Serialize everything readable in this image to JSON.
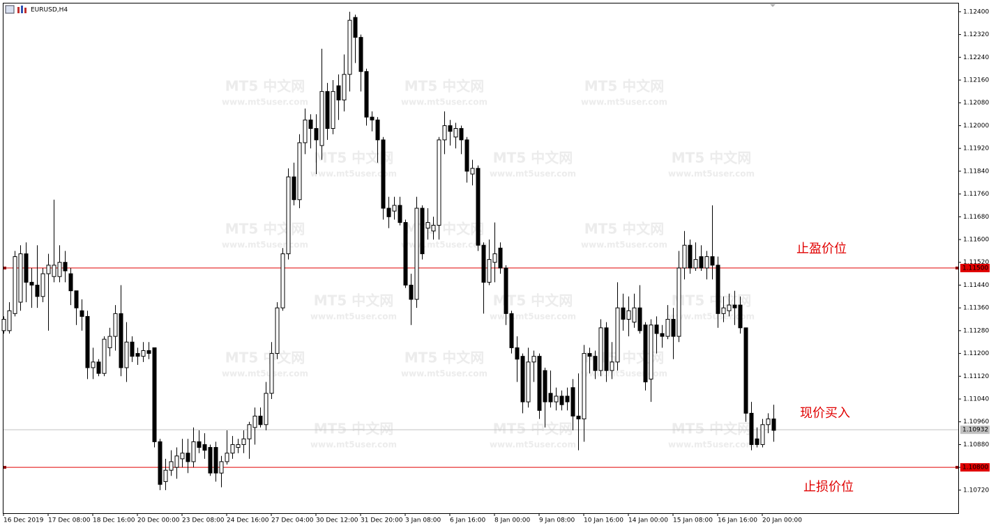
{
  "chart_data": {
    "type": "candlestick",
    "title": "EURUSD,H4",
    "categories": [
      "16 Dec 2019",
      null,
      null,
      null,
      null,
      null,
      null,
      null,
      "17 Dec 08:00",
      null,
      null,
      null,
      null,
      null,
      null,
      null,
      "18 Dec 16:00",
      null,
      null,
      null,
      null,
      null,
      null,
      null,
      "20 Dec 00:00",
      null,
      null,
      null,
      null,
      null,
      null,
      null,
      "23 Dec 08:00",
      null,
      null,
      null,
      null,
      null,
      null,
      null,
      "24 Dec 16:00",
      null,
      null,
      null,
      null,
      null,
      null,
      null,
      "27 Dec 04:00",
      null,
      null,
      null,
      null,
      null,
      null,
      null,
      "30 Dec 12:00",
      null,
      null,
      null,
      null,
      null,
      null,
      null,
      "31 Dec 20:00",
      null,
      null,
      null,
      null,
      null,
      null,
      null,
      "3 Jan 08:00",
      null,
      null,
      null,
      null,
      null,
      null,
      null,
      "6 Jan 16:00",
      null,
      null,
      null,
      null,
      null,
      null,
      null,
      "8 Jan 00:00",
      null,
      null,
      null,
      null,
      null,
      null,
      null,
      "9 Jan 08:00",
      null,
      null,
      null,
      null,
      null,
      null,
      null,
      "10 Jan 16:00",
      null,
      null,
      null,
      null,
      null,
      null,
      null,
      "14 Jan 00:00",
      null,
      null,
      null,
      null,
      null,
      null,
      null,
      "15 Jan 08:00",
      null,
      null,
      null,
      null,
      null,
      null,
      null,
      "16 Jan 16:00",
      null,
      null,
      null,
      null,
      null,
      null,
      null,
      "20 Jan 00:00",
      null,
      null
    ],
    "open": [
      1.1128,
      1.1128,
      1.1134,
      1.1138,
      1.1155,
      1.1145,
      1.1144,
      1.114,
      1.1148,
      1.1147,
      1.1147,
      1.1152,
      1.1148,
      1.1142,
      1.1135,
      1.1133,
      1.1115,
      1.1117,
      1.1113,
      1.1122,
      1.1126,
      1.1134,
      1.1115,
      1.1124,
      1.112,
      1.1119,
      1.1121,
      1.1122,
      1.1089,
      1.1075,
      1.1079,
      1.108,
      1.1083,
      1.1085,
      1.1082,
      1.1089,
      1.1088,
      1.1087,
      1.1087,
      1.1078,
      1.1082,
      1.1085,
      1.1087,
      1.1088,
      1.109,
      1.1094,
      1.1098,
      1.1095,
      1.1106,
      1.112,
      1.1136,
      1.1155,
      1.1182,
      1.1174,
      1.1194,
      1.1202,
      1.1199,
      1.1193,
      1.1212,
      1.1199,
      1.1214,
      1.1209,
      1.1218,
      1.1238,
      1.1231,
      1.1219,
      1.1203,
      1.1202,
      1.1195,
      1.1171,
      1.117,
      1.1172,
      1.1166,
      1.1144,
      1.1139,
      1.1171,
      1.1164,
      1.1163,
      1.1165,
      1.1195,
      1.12,
      1.1196,
      1.1199,
      1.1195,
      1.1183,
      1.1185,
      1.1158,
      1.1145,
      1.1152,
      1.1157,
      1.115,
      1.1134,
      1.1122,
      1.1119,
      1.1103,
      1.1117,
      1.1119,
      1.1114,
      1.1106,
      1.1103,
      1.1105,
      1.1105,
      1.1108,
      1.1098,
      1.1097,
      1.112,
      1.1119,
      1.1114,
      1.1129,
      1.1114,
      1.1117,
      1.1136,
      1.1132,
      1.1131,
      1.1136,
      1.113,
      1.1111,
      1.113,
      1.1127,
      1.1126,
      1.1132,
      1.1126,
      1.115,
      1.1158,
      1.115,
      1.1154,
      1.115,
      1.1154,
      1.1151,
      1.1134,
      1.1135,
      1.1137,
      1.1137,
      1.1129,
      1.1099,
      1.109,
      1.1088,
      1.1095,
      1.1097
    ],
    "high": [
      1.1133,
      1.1138,
      1.1156,
      1.1158,
      1.1159,
      1.115,
      1.1158,
      1.115,
      1.1155,
      1.1174,
      1.1158,
      1.1156,
      1.115,
      1.1142,
      1.1139,
      1.1135,
      1.1122,
      1.1118,
      1.1126,
      1.1129,
      1.1137,
      1.1144,
      1.1131,
      1.1126,
      1.1122,
      1.1124,
      1.1124,
      1.1122,
      1.109,
      1.1083,
      1.1086,
      1.1087,
      1.109,
      1.109,
      1.1094,
      1.1093,
      1.1092,
      1.1088,
      1.1089,
      1.1084,
      1.1093,
      1.1091,
      1.109,
      1.1093,
      1.1096,
      1.1101,
      1.1101,
      1.111,
      1.1124,
      1.1138,
      1.1157,
      1.1185,
      1.1187,
      1.1197,
      1.1206,
      1.1204,
      1.1204,
      1.1227,
      1.1215,
      1.1216,
      1.1218,
      1.1225,
      1.124,
      1.1239,
      1.1232,
      1.122,
      1.1205,
      1.1203,
      1.1196,
      1.1175,
      1.1175,
      1.1175,
      1.1167,
      1.1148,
      1.1175,
      1.1172,
      1.1171,
      1.1168,
      1.1196,
      1.1205,
      1.1202,
      1.1201,
      1.12,
      1.1196,
      1.1188,
      1.1186,
      1.1159,
      1.116,
      1.1166,
      1.1159,
      1.1151,
      1.1135,
      1.1126,
      1.112,
      1.1122,
      1.1121,
      1.112,
      1.1115,
      1.1114,
      1.1108,
      1.1107,
      1.1108,
      1.1111,
      1.1113,
      1.1123,
      1.1122,
      1.1121,
      1.1132,
      1.1131,
      1.1124,
      1.1145,
      1.1141,
      1.114,
      1.1141,
      1.1144,
      1.1131,
      1.1132,
      1.1133,
      1.113,
      1.1137,
      1.1136,
      1.1156,
      1.1163,
      1.116,
      1.1159,
      1.1158,
      1.1156,
      1.1172,
      1.1154,
      1.114,
      1.1141,
      1.1142,
      1.114,
      1.1129,
      1.1103,
      1.1094,
      1.1097,
      1.1099,
      1.1102
    ],
    "low": [
      1.1127,
      1.1127,
      1.1133,
      1.1135,
      1.1138,
      1.1136,
      1.1136,
      1.1138,
      1.1128,
      1.1145,
      1.1145,
      1.1145,
      1.1137,
      1.113,
      1.1128,
      1.1111,
      1.1111,
      1.1112,
      1.1112,
      1.1119,
      1.1121,
      1.1112,
      1.111,
      1.1117,
      1.1116,
      1.1117,
      1.1118,
      1.1087,
      1.1072,
      1.1072,
      1.1077,
      1.1076,
      1.108,
      1.1078,
      1.108,
      1.1085,
      1.1083,
      1.1077,
      1.1075,
      1.1073,
      1.1081,
      1.1083,
      1.1085,
      1.1085,
      1.1083,
      1.1088,
      1.1094,
      1.1093,
      1.1104,
      1.1118,
      1.1135,
      1.1153,
      1.1172,
      1.1171,
      1.119,
      1.1192,
      1.1183,
      1.1188,
      1.1195,
      1.1197,
      1.1202,
      1.1205,
      1.1212,
      1.1222,
      1.1212,
      1.12,
      1.1198,
      1.1187,
      1.1167,
      1.1164,
      1.1167,
      1.1165,
      1.1143,
      1.113,
      1.1136,
      1.1153,
      1.116,
      1.116,
      1.116,
      1.119,
      1.1193,
      1.1192,
      1.119,
      1.118,
      1.1179,
      1.1156,
      1.1134,
      1.1144,
      1.1145,
      1.1148,
      1.113,
      1.112,
      1.111,
      1.1099,
      1.1101,
      1.111,
      1.1097,
      1.1094,
      1.1101,
      1.11,
      1.11,
      1.11,
      1.1093,
      1.1086,
      1.1089,
      1.1113,
      1.1111,
      1.1112,
      1.111,
      1.1111,
      1.1114,
      1.1128,
      1.1126,
      1.1129,
      1.1127,
      1.1107,
      1.1103,
      1.112,
      1.1122,
      1.1125,
      1.1118,
      1.1124,
      1.1146,
      1.1148,
      1.1149,
      1.1149,
      1.1146,
      1.1146,
      1.1129,
      1.1131,
      1.1133,
      1.113,
      1.1127,
      1.1096,
      1.1086,
      1.1087,
      1.1087,
      1.1092,
      1.1089
    ],
    "close": [
      1.1132,
      1.1135,
      1.1154,
      1.1155,
      1.1145,
      1.1144,
      1.114,
      1.1148,
      1.1151,
      1.1151,
      1.1152,
      1.1149,
      1.1142,
      1.1136,
      1.1133,
      1.1115,
      1.1117,
      1.1113,
      1.1125,
      1.1126,
      1.1134,
      1.1115,
      1.1124,
      1.1119,
      1.1119,
      1.1121,
      1.112,
      1.1089,
      1.1074,
      1.1079,
      1.1082,
      1.1084,
      1.1085,
      1.1082,
      1.1089,
      1.1087,
      1.1086,
      1.1078,
      1.1078,
      1.1082,
      1.1085,
      1.1088,
      1.1088,
      1.109,
      1.1095,
      1.1098,
      1.1095,
      1.1106,
      1.112,
      1.1136,
      1.1155,
      1.1182,
      1.1174,
      1.1194,
      1.1202,
      1.1199,
      1.1195,
      1.1212,
      1.1199,
      1.1212,
      1.1209,
      1.1218,
      1.1237,
      1.1231,
      1.1219,
      1.1203,
      1.1202,
      1.1195,
      1.1171,
      1.1168,
      1.1172,
      1.1166,
      1.1144,
      1.1139,
      1.1171,
      1.1155,
      1.1166,
      1.1165,
      1.1195,
      1.12,
      1.1198,
      1.1199,
      1.1195,
      1.1184,
      1.1185,
      1.1158,
      1.1145,
      1.1153,
      1.1155,
      1.115,
      1.1134,
      1.1122,
      1.1118,
      1.1103,
      1.1117,
      1.1119,
      1.11,
      1.1103,
      1.1103,
      1.1105,
      1.1102,
      1.1103,
      1.1098,
      1.1097,
      1.112,
      1.1119,
      1.1114,
      1.1129,
      1.1114,
      1.1117,
      1.1136,
      1.1132,
      1.1135,
      1.1136,
      1.1128,
      1.111,
      1.113,
      1.1127,
      1.1126,
      1.1132,
      1.1126,
      1.115,
      1.1158,
      1.115,
      1.1153,
      1.115,
      1.1154,
      1.1151,
      1.1134,
      1.1136,
      1.1137,
      1.1136,
      1.1129,
      1.1099,
      1.1088,
      1.1088,
      1.1095,
      1.1097,
      1.1093
    ],
    "bull_color": "#ffffff",
    "bear_color": "#000000",
    "ylim": [
      1.10639,
      1.12429
    ],
    "yticks": [
      {
        "value": 1.124,
        "label": "1.12400"
      },
      {
        "value": 1.1232,
        "label": "1.12320"
      },
      {
        "value": 1.1224,
        "label": "1.12240"
      },
      {
        "value": 1.1216,
        "label": "1.12160"
      },
      {
        "value": 1.1208,
        "label": "1.12080"
      },
      {
        "value": 1.12,
        "label": "1.12000"
      },
      {
        "value": 1.1192,
        "label": "1.11920"
      },
      {
        "value": 1.1184,
        "label": "1.11840"
      },
      {
        "value": 1.1176,
        "label": "1.11760"
      },
      {
        "value": 1.1168,
        "label": "1.11680"
      },
      {
        "value": 1.116,
        "label": "1.11600"
      },
      {
        "value": 1.1152,
        "label": "1.11520"
      },
      {
        "value": 1.1144,
        "label": "1.11440"
      },
      {
        "value": 1.1136,
        "label": "1.11360"
      },
      {
        "value": 1.1128,
        "label": "1.11280"
      },
      {
        "value": 1.112,
        "label": "1.11200"
      },
      {
        "value": 1.1112,
        "label": "1.11120"
      },
      {
        "value": 1.1104,
        "label": "1.11040"
      },
      {
        "value": 1.1096,
        "label": "1.10960"
      },
      {
        "value": 1.1088,
        "label": "1.10880"
      },
      {
        "value": 1.108,
        "label": "1.10800"
      },
      {
        "value": 1.1072,
        "label": "1.10720"
      }
    ],
    "price_lines": [
      {
        "value": 1.115,
        "label": "1.11500",
        "color": "#e00000",
        "note": "止盈价位"
      },
      {
        "value": 1.10932,
        "label": "1.10932",
        "color": "#c0c0c0",
        "note": "现价买入"
      },
      {
        "value": 1.108,
        "label": "1.10800",
        "color": "#e00000",
        "note": "止损价位"
      }
    ],
    "watermark": [
      "MT5 中文网",
      "www.mt5user.com"
    ]
  }
}
